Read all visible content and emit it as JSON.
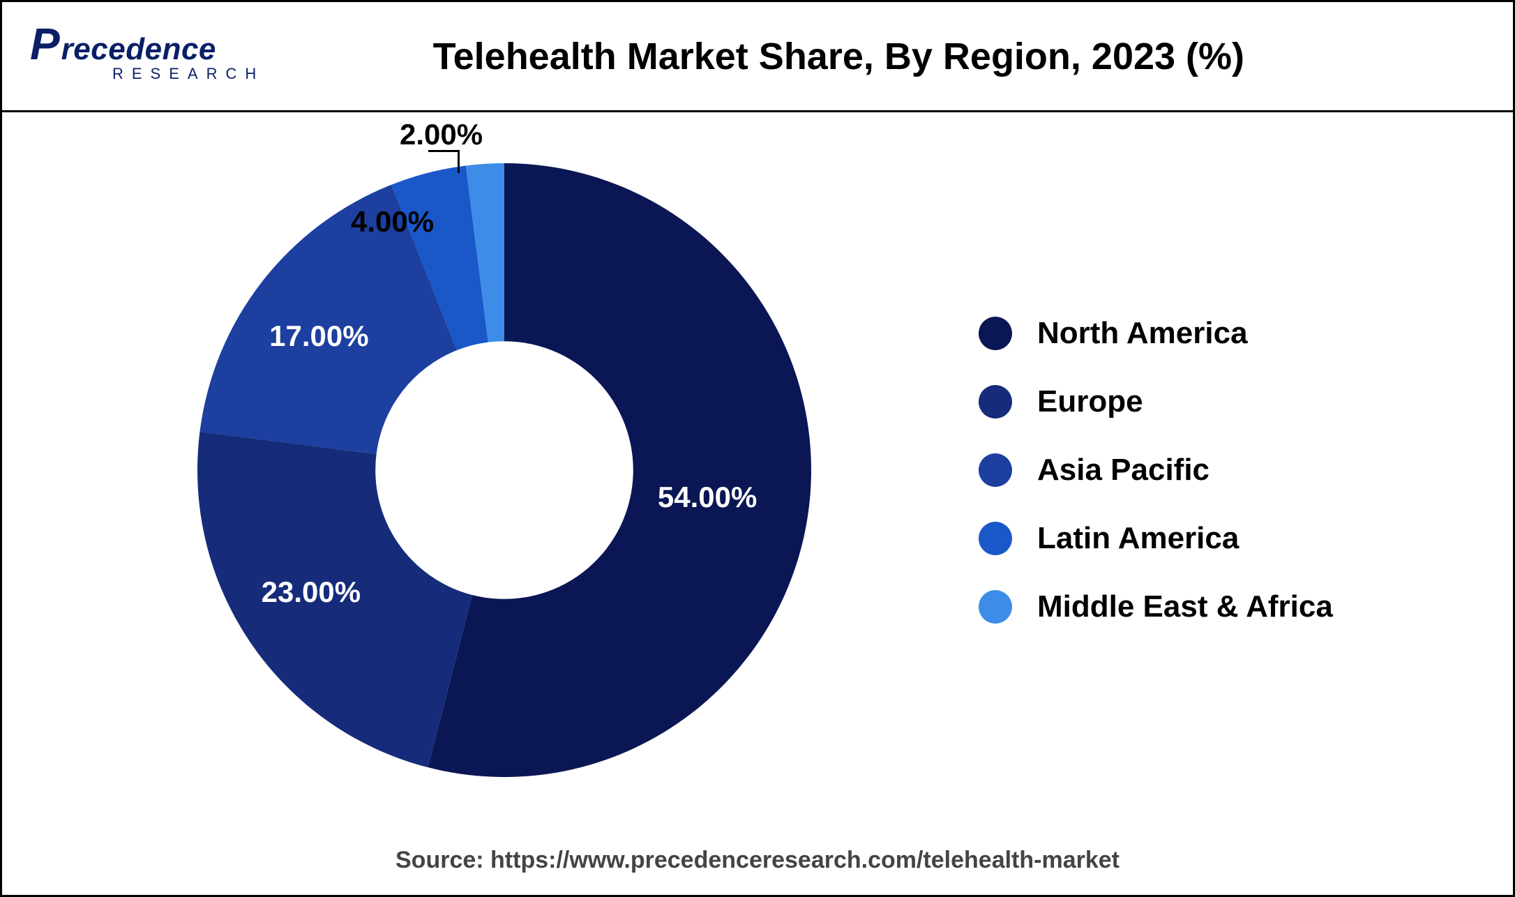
{
  "logo": {
    "brand_p": "P",
    "brand_rest": "recedence",
    "brand_sub": "RESEARCH",
    "color": "#0a1f66"
  },
  "chart": {
    "type": "donut",
    "title": "Telehealth Market Share, By Region, 2023 (%)",
    "title_fontsize": 54,
    "title_color": "#000000",
    "background_color": "#ffffff",
    "inner_radius_ratio": 0.42,
    "outer_radius": 440,
    "slices": [
      {
        "label": "North America",
        "value": 54.0,
        "display": "54.00%",
        "color": "#0b1654",
        "text_color": "#ffffff"
      },
      {
        "label": "Europe",
        "value": 23.0,
        "display": "23.00%",
        "color": "#162c7a",
        "text_color": "#ffffff"
      },
      {
        "label": "Asia Pacific",
        "value": 17.0,
        "display": "17.00%",
        "color": "#1c3fa0",
        "text_color": "#ffffff"
      },
      {
        "label": "Latin America",
        "value": 4.0,
        "display": "4.00%",
        "color": "#1a57c9",
        "text_color": "#000000"
      },
      {
        "label": "Middle East & Africa",
        "value": 2.0,
        "display": "2.00%",
        "color": "#3d8de8",
        "text_color": "#000000"
      }
    ],
    "start_angle_deg": 90,
    "direction": "clockwise",
    "slice_label_fontsize": 42,
    "legend_fontsize": 44,
    "legend_dot_size": 48
  },
  "footer": {
    "source_text": "Source: https://www.precedenceresearch.com/telehealth-market",
    "fontsize": 34,
    "color": "#444444"
  }
}
